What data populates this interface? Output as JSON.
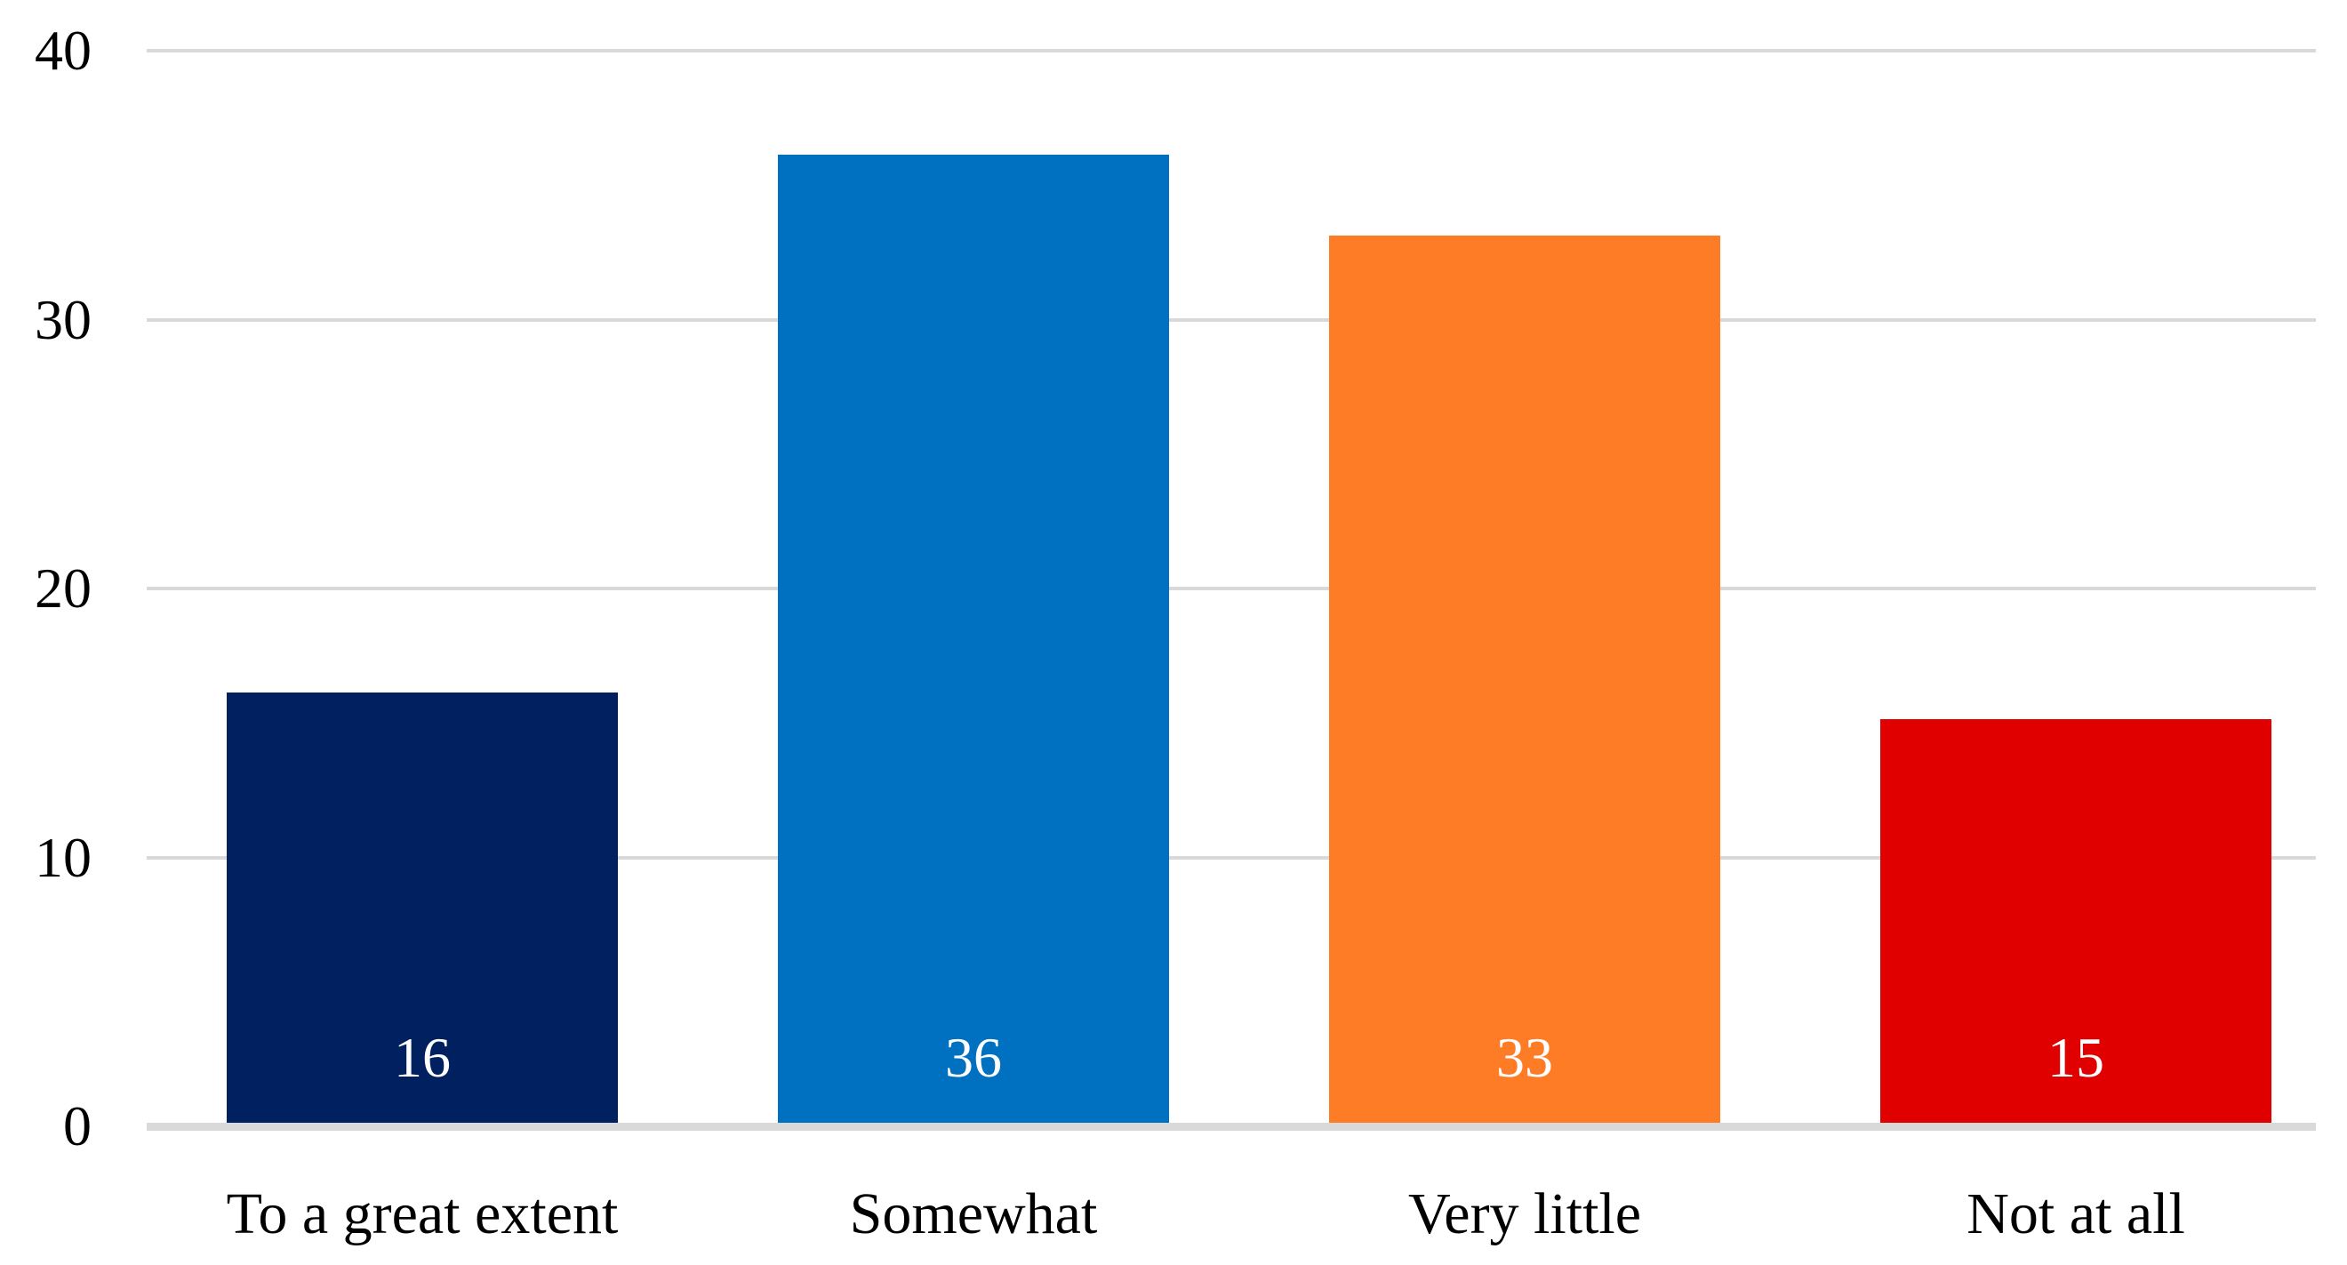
{
  "chart_data": {
    "type": "bar",
    "title": "",
    "xlabel": "",
    "ylabel": "",
    "categories": [
      "To a great extent",
      "Somewhat",
      "Very little",
      "Not at all"
    ],
    "values": [
      16,
      36,
      33,
      15
    ],
    "data_labels": [
      "16",
      "36",
      "33",
      "15"
    ],
    "bar_colors": [
      "#002060",
      "#0070C0",
      "#FF7C26",
      "#E00000"
    ],
    "data_label_color": "#FFFFFF",
    "ylim": [
      0,
      40
    ],
    "yticks": [
      "0",
      "10",
      "20",
      "30",
      "40"
    ],
    "grid": true,
    "gridline_color": "#D9D9D9",
    "baseline_color": "#D9D9D9",
    "axis_text_color": "#000000",
    "legend_position": "none",
    "background_color": "#FFFFFF"
  }
}
